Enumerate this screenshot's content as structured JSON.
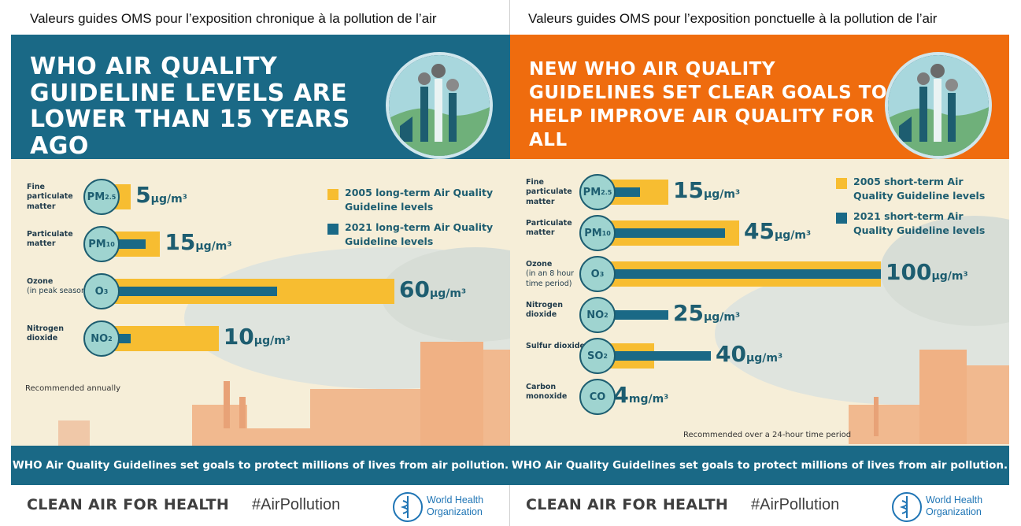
{
  "headings": {
    "left": "Valeurs guides OMS pour l’exposition chronique à la pollution de l’air",
    "right": "Valeurs guides OMS pour l’exposition ponctuelle à la pollution de l’air"
  },
  "colors": {
    "guideline_2005": "#f7bd31",
    "guideline_2021": "#1a6986",
    "left_banner": "#1a6986",
    "right_banner": "#ef6c0e",
    "footer_band": "#1a6986"
  },
  "chart_data": [
    {
      "type": "bar",
      "title": "WHO AIR QUALITY GUIDELINE LEVELS ARE LOWER THAN 15 YEARS AGO",
      "legend_placement": "top-right",
      "series": [
        {
          "name": "2005 long-term Air Quality Guideline levels",
          "color": "#f7bd31",
          "values": [
            10,
            20,
            100,
            40
          ]
        },
        {
          "name": "2021 long-term Air Quality Guideline levels",
          "color": "#1a6986",
          "values": [
            5,
            15,
            60,
            10
          ]
        }
      ],
      "categories": [
        {
          "label": "Fine particulate matter",
          "sub": "",
          "symbol": "PM",
          "subscript": "2.5",
          "value_text": "5",
          "unit_text": "μg/m³"
        },
        {
          "label": "Particulate matter",
          "sub": "",
          "symbol": "PM",
          "subscript": "10",
          "value_text": "15",
          "unit_text": "μg/m³"
        },
        {
          "label": "Ozone",
          "sub": "(in peak season)",
          "symbol": "O",
          "subscript": "3",
          "value_text": "60",
          "unit_text": "μg/m³"
        },
        {
          "label": "Nitrogen dioxide",
          "sub": "",
          "symbol": "NO",
          "subscript": "2",
          "value_text": "10",
          "unit_text": "μg/m³"
        }
      ],
      "note": "Recommended annually",
      "footer": "WHO Air Quality Guidelines set goals to protect millions of lives from air pollution."
    },
    {
      "type": "bar",
      "title": "NEW WHO AIR QUALITY GUIDELINES SET CLEAR GOALS TO HELP IMPROVE AIR QUALITY FOR ALL",
      "legend_placement": "top-right",
      "series": [
        {
          "name": "2005 short-term Air Quality Guideline levels",
          "color": "#f7bd31",
          "values": [
            25,
            50,
            100,
            0,
            20,
            0
          ]
        },
        {
          "name": "2021 short-term Air Quality Guideline levels",
          "color": "#1a6986",
          "values": [
            15,
            45,
            100,
            25,
            40,
            4
          ]
        }
      ],
      "categories": [
        {
          "label": "Fine particulate matter",
          "sub": "",
          "symbol": "PM",
          "subscript": "2.5",
          "value_text": "15",
          "unit_text": "μg/m³"
        },
        {
          "label": "Particulate matter",
          "sub": "",
          "symbol": "PM",
          "subscript": "10",
          "value_text": "45",
          "unit_text": "μg/m³"
        },
        {
          "label": "Ozone",
          "sub": "(in an 8 hour time period)",
          "symbol": "O",
          "subscript": "3",
          "value_text": "100",
          "unit_text": "μg/m³"
        },
        {
          "label": "Nitrogen dioxide",
          "sub": "",
          "symbol": "NO",
          "subscript": "2",
          "value_text": "25",
          "unit_text": "μg/m³"
        },
        {
          "label": "Sulfur dioxide",
          "sub": "",
          "symbol": "SO",
          "subscript": "2",
          "value_text": "40",
          "unit_text": "μg/m³"
        },
        {
          "label": "Carbon monoxide",
          "sub": "",
          "symbol": "CO",
          "subscript": "",
          "value_text": "4",
          "unit_text": "mg/m³"
        }
      ],
      "note": "Recommended over a 24-hour time period",
      "footer": "WHO Air Quality Guidelines set goals to protect millions of lives from air pollution."
    }
  ],
  "bottom": {
    "campaign": "CLEAN AIR FOR HEALTH",
    "hashtag": "#AirPollution",
    "who_name_1": "World Health",
    "who_name_2": "Organization"
  }
}
